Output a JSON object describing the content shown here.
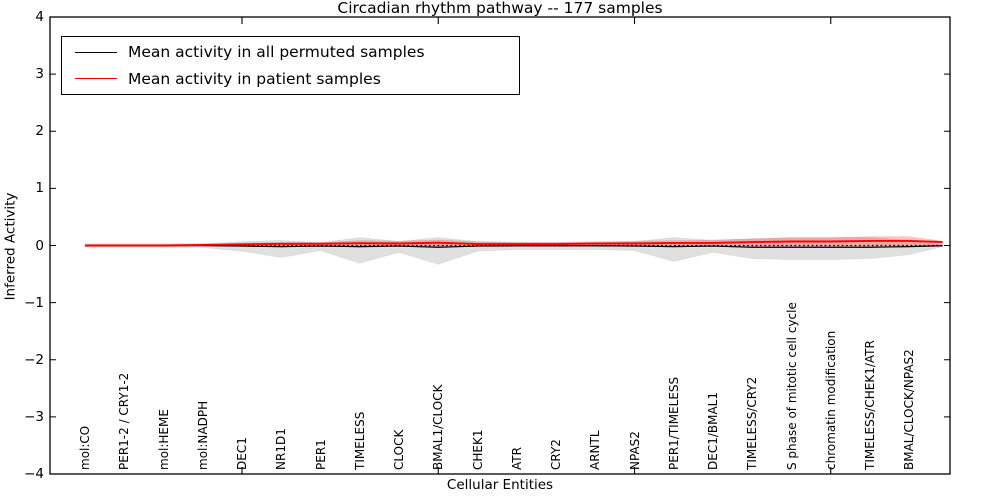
{
  "title": "Circadian rhythm pathway -- 177 samples",
  "legend": {
    "items": [
      {
        "label": "Mean activity in all permuted samples",
        "color": "#000000"
      },
      {
        "label": "Mean activity in patient samples",
        "color": "#ff0000"
      }
    ]
  },
  "chart_data": {
    "type": "line",
    "title": "Circadian rhythm pathway -- 177 samples",
    "xlabel": "Cellular Entities",
    "ylabel": "Inferred Activity",
    "ylim": [
      -4,
      4
    ],
    "grid": false,
    "legend_position": "upper-left",
    "yticks": [
      "4",
      "3",
      "2",
      "1",
      "0",
      "−1",
      "−2",
      "−3",
      "−4"
    ],
    "categories": [
      "mol:CO",
      "PER1-2 / CRY1-2",
      "mol:HEME",
      "mol:NADPH",
      "DEC1",
      "NR1D1",
      "PER1",
      "TIMELESS",
      "CLOCK",
      "BMAL1/CLOCK",
      "CHEK1",
      "ATR",
      "CRY2",
      "ARNTL",
      "NPAS2",
      "PER1/TIMELESS",
      "DEC1/BMAL1",
      "TIMELESS/CRY2",
      "S phase of mitotic cell cycle",
      "chromatin modification",
      "TIMELESS/CHEK1/ATR",
      "BMAL/CLOCK/NPAS2"
    ],
    "x_major_tick_indices": [
      4,
      9,
      14,
      19
    ],
    "series": [
      {
        "name": "Mean activity in all permuted samples",
        "color": "#000000",
        "values": [
          0,
          0,
          0,
          0,
          -0.01,
          -0.02,
          -0.01,
          -0.02,
          -0.01,
          -0.03,
          -0.01,
          -0.005,
          -0.005,
          -0.005,
          -0.01,
          -0.02,
          -0.01,
          -0.03,
          -0.03,
          -0.03,
          -0.03,
          -0.02
        ]
      },
      {
        "name": "Mean activity in patient samples",
        "color": "#ff0000",
        "values": [
          0,
          0,
          0,
          0.01,
          0.02,
          0.03,
          0.03,
          0.04,
          0.035,
          0.05,
          0.025,
          0.025,
          0.025,
          0.035,
          0.035,
          0.045,
          0.045,
          0.06,
          0.07,
          0.07,
          0.08,
          0.08
        ]
      }
    ],
    "bands": [
      {
        "name": "permuted-sample-range",
        "color": "#000000",
        "opacity": 0.12,
        "upper": [
          0.03,
          0.03,
          0.03,
          0.035,
          0.07,
          0.09,
          0.05,
          0.14,
          0.07,
          0.14,
          0.07,
          0.05,
          0.05,
          0.05,
          0.07,
          0.14,
          0.09,
          0.12,
          0.14,
          0.14,
          0.14,
          0.09
        ],
        "lower": [
          -0.03,
          -0.03,
          -0.03,
          -0.035,
          -0.1,
          -0.21,
          -0.09,
          -0.31,
          -0.12,
          -0.33,
          -0.1,
          -0.07,
          -0.07,
          -0.07,
          -0.09,
          -0.28,
          -0.12,
          -0.23,
          -0.25,
          -0.25,
          -0.23,
          -0.16
        ]
      },
      {
        "name": "patient-sample-range",
        "color": "#ff0000",
        "opacity": 0.24,
        "upper": [
          0.02,
          0.02,
          0.02,
          0.025,
          0.045,
          0.06,
          0.06,
          0.09,
          0.08,
          0.1,
          0.07,
          0.06,
          0.06,
          0.07,
          0.08,
          0.09,
          0.1,
          0.12,
          0.14,
          0.14,
          0.16,
          0.16
        ],
        "lower": [
          -0.02,
          -0.02,
          -0.02,
          -0.02,
          -0.02,
          -0.025,
          -0.02,
          -0.035,
          -0.02,
          -0.035,
          -0.02,
          -0.02,
          -0.02,
          -0.02,
          -0.02,
          -0.025,
          -0.02,
          -0.025,
          -0.025,
          -0.025,
          -0.025,
          -0.02
        ]
      }
    ],
    "tail": {
      "x_extension": 0.85,
      "permuted_mean": -0.005,
      "patient_mean": 0.06,
      "permuted_upper": 0.01,
      "permuted_lower": -0.02,
      "patient_upper": 0.08,
      "patient_lower": 0.0
    },
    "zero_line": {
      "style": "dotted",
      "color": "#000000"
    }
  }
}
